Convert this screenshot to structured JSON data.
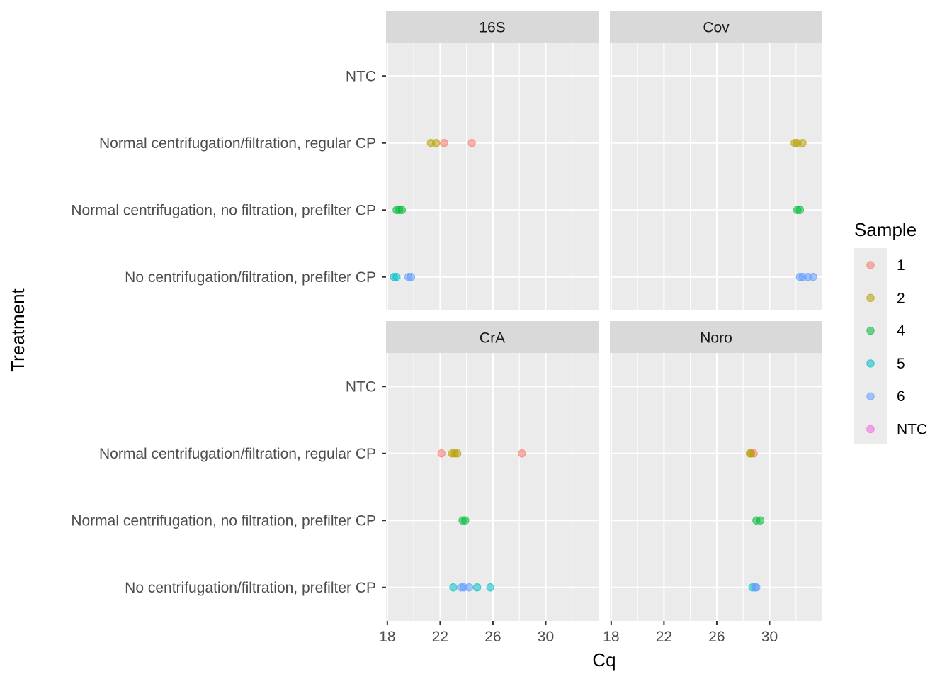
{
  "chart_data": {
    "type": "scatter",
    "facets": [
      "16S",
      "Cov",
      "CrA",
      "Noro"
    ],
    "xlabel": "Cq",
    "ylabel": "Treatment",
    "xticks": [
      18,
      22,
      26,
      30
    ],
    "xlim": [
      17.9,
      34.0
    ],
    "categories": [
      "No centrifugation/filtration, prefilter CP",
      "Normal centrifugation, no filtration, prefilter CP",
      "Normal centrifugation/filtration, regular CP",
      "NTC"
    ],
    "legend": {
      "title": "Sample",
      "placement": "right",
      "entries": [
        {
          "label": "1",
          "color": "#F8766D"
        },
        {
          "label": "2",
          "color": "#B79F00"
        },
        {
          "label": "4",
          "color": "#00BA38"
        },
        {
          "label": "5",
          "color": "#00BFC4"
        },
        {
          "label": "6",
          "color": "#619CFF"
        },
        {
          "label": "NTC",
          "color": "#F564E3"
        }
      ]
    },
    "points": [
      {
        "facet": "16S",
        "treatment": "Normal centrifugation/filtration, regular CP",
        "sample": "2",
        "cq": 21.3
      },
      {
        "facet": "16S",
        "treatment": "Normal centrifugation/filtration, regular CP",
        "sample": "2",
        "cq": 21.7
      },
      {
        "facet": "16S",
        "treatment": "Normal centrifugation/filtration, regular CP",
        "sample": "1",
        "cq": 22.3
      },
      {
        "facet": "16S",
        "treatment": "Normal centrifugation/filtration, regular CP",
        "sample": "1",
        "cq": 24.4
      },
      {
        "facet": "16S",
        "treatment": "Normal centrifugation, no filtration, prefilter CP",
        "sample": "4",
        "cq": 18.7
      },
      {
        "facet": "16S",
        "treatment": "Normal centrifugation, no filtration, prefilter CP",
        "sample": "4",
        "cq": 18.9
      },
      {
        "facet": "16S",
        "treatment": "Normal centrifugation, no filtration, prefilter CP",
        "sample": "4",
        "cq": 19.1
      },
      {
        "facet": "16S",
        "treatment": "No centrifugation/filtration, prefilter CP",
        "sample": "5",
        "cq": 18.5
      },
      {
        "facet": "16S",
        "treatment": "No centrifugation/filtration, prefilter CP",
        "sample": "5",
        "cq": 18.7
      },
      {
        "facet": "16S",
        "treatment": "No centrifugation/filtration, prefilter CP",
        "sample": "6",
        "cq": 19.6
      },
      {
        "facet": "16S",
        "treatment": "No centrifugation/filtration, prefilter CP",
        "sample": "6",
        "cq": 19.8
      },
      {
        "facet": "Cov",
        "treatment": "Normal centrifugation/filtration, regular CP",
        "sample": "2",
        "cq": 31.9
      },
      {
        "facet": "Cov",
        "treatment": "Normal centrifugation/filtration, regular CP",
        "sample": "2",
        "cq": 32.1
      },
      {
        "facet": "Cov",
        "treatment": "Normal centrifugation/filtration, regular CP",
        "sample": "2",
        "cq": 32.5
      },
      {
        "facet": "Cov",
        "treatment": "Normal centrifugation, no filtration, prefilter CP",
        "sample": "4",
        "cq": 32.1
      },
      {
        "facet": "Cov",
        "treatment": "Normal centrifugation, no filtration, prefilter CP",
        "sample": "4",
        "cq": 32.3
      },
      {
        "facet": "Cov",
        "treatment": "No centrifugation/filtration, prefilter CP",
        "sample": "6",
        "cq": 32.3
      },
      {
        "facet": "Cov",
        "treatment": "No centrifugation/filtration, prefilter CP",
        "sample": "6",
        "cq": 32.5
      },
      {
        "facet": "Cov",
        "treatment": "No centrifugation/filtration, prefilter CP",
        "sample": "6",
        "cq": 32.9
      },
      {
        "facet": "Cov",
        "treatment": "No centrifugation/filtration, prefilter CP",
        "sample": "6",
        "cq": 33.3
      },
      {
        "facet": "CrA",
        "treatment": "Normal centrifugation/filtration, regular CP",
        "sample": "1",
        "cq": 22.1
      },
      {
        "facet": "CrA",
        "treatment": "Normal centrifugation/filtration, regular CP",
        "sample": "2",
        "cq": 22.9
      },
      {
        "facet": "CrA",
        "treatment": "Normal centrifugation/filtration, regular CP",
        "sample": "2",
        "cq": 23.1
      },
      {
        "facet": "CrA",
        "treatment": "Normal centrifugation/filtration, regular CP",
        "sample": "2",
        "cq": 23.3
      },
      {
        "facet": "CrA",
        "treatment": "Normal centrifugation/filtration, regular CP",
        "sample": "1",
        "cq": 28.2
      },
      {
        "facet": "CrA",
        "treatment": "Normal centrifugation, no filtration, prefilter CP",
        "sample": "4",
        "cq": 23.7
      },
      {
        "facet": "CrA",
        "treatment": "Normal centrifugation, no filtration, prefilter CP",
        "sample": "4",
        "cq": 23.9
      },
      {
        "facet": "CrA",
        "treatment": "No centrifugation/filtration, prefilter CP",
        "sample": "5",
        "cq": 23.0
      },
      {
        "facet": "CrA",
        "treatment": "No centrifugation/filtration, prefilter CP",
        "sample": "6",
        "cq": 23.6
      },
      {
        "facet": "CrA",
        "treatment": "No centrifugation/filtration, prefilter CP",
        "sample": "6",
        "cq": 23.8
      },
      {
        "facet": "CrA",
        "treatment": "No centrifugation/filtration, prefilter CP",
        "sample": "6",
        "cq": 24.2
      },
      {
        "facet": "CrA",
        "treatment": "No centrifugation/filtration, prefilter CP",
        "sample": "5",
        "cq": 24.8
      },
      {
        "facet": "CrA",
        "treatment": "No centrifugation/filtration, prefilter CP",
        "sample": "5",
        "cq": 25.8
      },
      {
        "facet": "Noro",
        "treatment": "Normal centrifugation/filtration, regular CP",
        "sample": "1",
        "cq": 28.8
      },
      {
        "facet": "Noro",
        "treatment": "Normal centrifugation/filtration, regular CP",
        "sample": "2",
        "cq": 28.5
      },
      {
        "facet": "Noro",
        "treatment": "Normal centrifugation/filtration, regular CP",
        "sample": "2",
        "cq": 28.6
      },
      {
        "facet": "Noro",
        "treatment": "Normal centrifugation, no filtration, prefilter CP",
        "sample": "4",
        "cq": 29.0
      },
      {
        "facet": "Noro",
        "treatment": "Normal centrifugation, no filtration, prefilter CP",
        "sample": "4",
        "cq": 29.3
      },
      {
        "facet": "Noro",
        "treatment": "No centrifugation/filtration, prefilter CP",
        "sample": "5",
        "cq": 28.7
      },
      {
        "facet": "Noro",
        "treatment": "No centrifugation/filtration, prefilter CP",
        "sample": "6",
        "cq": 28.9
      },
      {
        "facet": "Noro",
        "treatment": "No centrifugation/filtration, prefilter CP",
        "sample": "6",
        "cq": 29.0
      }
    ]
  }
}
